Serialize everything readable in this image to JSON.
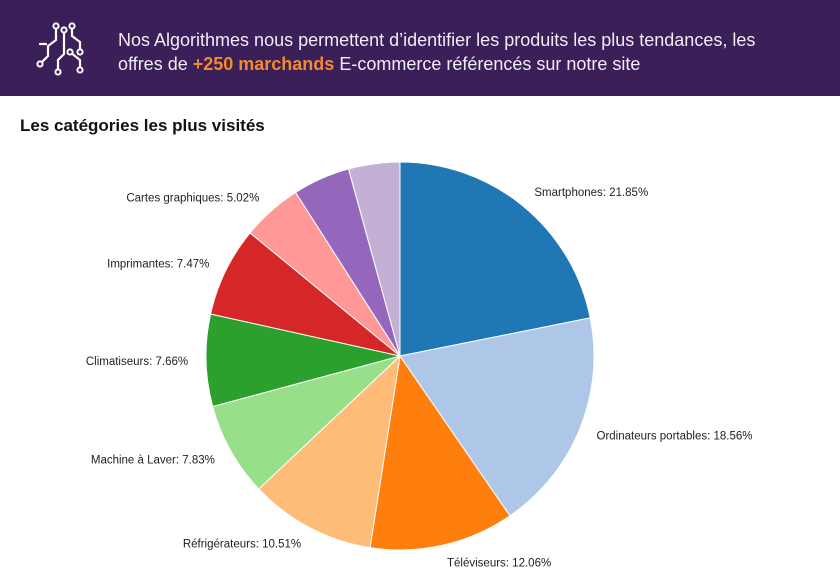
{
  "banner": {
    "line1": "Nos Algorithmes nous permettent d’identifier les produits les plus tendances, les",
    "line2_prefix": "offres de ",
    "line2_highlight": "+250 marchands",
    "line2_suffix": " E-commerce référencés sur notre site",
    "icon": "circuit-icon",
    "background_color": "#3a1f59",
    "highlight_color": "#f28a2e"
  },
  "chart_data": {
    "type": "pie",
    "title": "Les catégories les plus visités",
    "slices": [
      {
        "label": "Smartphones: 21.85%",
        "value": 21.85,
        "color": "#1f77b4"
      },
      {
        "label": "Ordinateurs portables: 18.56%",
        "value": 18.56,
        "color": "#aec7e8"
      },
      {
        "label": "Téléviseurs: 12.06%",
        "value": 12.06,
        "color": "#ff7f0e"
      },
      {
        "label": "Réfrigérateurs: 10.51%",
        "value": 10.51,
        "color": "#ffbb78"
      },
      {
        "label": "Machine à Laver: 7.83%",
        "value": 7.83,
        "color": "#98df8a"
      },
      {
        "label": "Climatiseurs: 7.66%",
        "value": 7.66,
        "color": "#2ca02c"
      },
      {
        "label": "Imprimantes: 7.47%",
        "value": 7.47,
        "color": "#d62728"
      },
      {
        "label": "Cartes graphiques: 5.02%",
        "value": 5.02,
        "color": "#ff9896"
      },
      {
        "label": "",
        "value": 4.77,
        "color": "#9467bd"
      },
      {
        "label": "",
        "value": 4.27,
        "color": "#c5b0d5"
      }
    ],
    "start_angle": "top",
    "direction": "clockwise",
    "legend": "none"
  }
}
